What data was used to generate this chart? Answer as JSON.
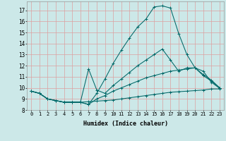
{
  "xlabel": "Humidex (Indice chaleur)",
  "bg_color": "#cce8e8",
  "grid_color": "#dda0a0",
  "line_color": "#006868",
  "xlim": [
    -0.5,
    23.5
  ],
  "ylim": [
    8,
    17.8
  ],
  "xticks": [
    0,
    1,
    2,
    3,
    4,
    5,
    6,
    7,
    8,
    9,
    10,
    11,
    12,
    13,
    14,
    15,
    16,
    17,
    18,
    19,
    20,
    21,
    22,
    23
  ],
  "yticks": [
    8,
    9,
    10,
    11,
    12,
    13,
    14,
    15,
    16,
    17
  ],
  "line1_x": [
    0,
    1,
    2,
    3,
    4,
    5,
    6,
    7,
    8,
    9,
    10,
    11,
    12,
    13,
    14,
    15,
    16,
    17,
    18,
    19,
    20,
    21,
    22,
    23
  ],
  "line1_y": [
    9.7,
    9.5,
    9.0,
    8.85,
    8.7,
    8.7,
    8.7,
    8.75,
    8.8,
    8.85,
    8.9,
    9.0,
    9.1,
    9.2,
    9.3,
    9.4,
    9.5,
    9.6,
    9.65,
    9.7,
    9.75,
    9.8,
    9.9,
    9.9
  ],
  "line2_x": [
    0,
    1,
    2,
    3,
    4,
    5,
    6,
    7,
    8,
    9,
    10,
    11,
    12,
    13,
    14,
    15,
    16,
    17,
    18,
    19,
    20,
    21,
    22,
    23
  ],
  "line2_y": [
    9.7,
    9.5,
    9.0,
    8.85,
    8.7,
    8.7,
    8.7,
    8.5,
    9.0,
    9.3,
    9.7,
    10.0,
    10.3,
    10.6,
    10.9,
    11.1,
    11.3,
    11.5,
    11.6,
    11.7,
    11.8,
    11.1,
    10.6,
    10.0
  ],
  "line3_x": [
    0,
    1,
    2,
    3,
    4,
    5,
    6,
    7,
    8,
    9,
    10,
    11,
    12,
    13,
    14,
    15,
    16,
    17,
    18,
    19,
    20,
    21,
    22,
    23
  ],
  "line3_y": [
    9.7,
    9.5,
    9.0,
    8.85,
    8.7,
    8.7,
    8.7,
    11.7,
    9.8,
    9.5,
    10.2,
    10.8,
    11.4,
    12.0,
    12.5,
    13.0,
    13.5,
    12.5,
    11.5,
    11.8,
    11.8,
    11.2,
    10.7,
    10.0
  ],
  "line4_x": [
    0,
    1,
    2,
    3,
    4,
    5,
    6,
    7,
    8,
    9,
    10,
    11,
    12,
    13,
    14,
    15,
    16,
    17,
    18,
    19,
    20,
    21,
    22,
    23
  ],
  "line4_y": [
    9.7,
    9.5,
    9.0,
    8.85,
    8.7,
    8.7,
    8.7,
    8.5,
    9.5,
    10.8,
    12.2,
    13.4,
    14.5,
    15.5,
    16.2,
    17.3,
    17.4,
    17.2,
    14.9,
    13.0,
    11.8,
    11.5,
    10.5,
    9.95
  ]
}
